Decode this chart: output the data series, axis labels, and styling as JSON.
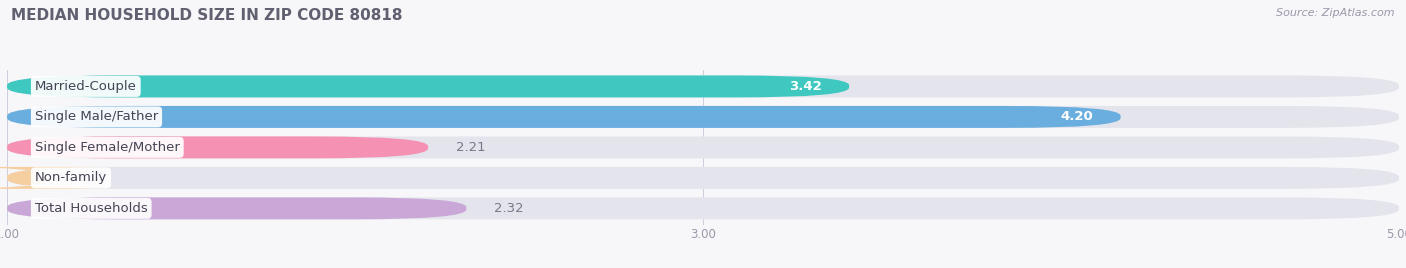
{
  "title": "MEDIAN HOUSEHOLD SIZE IN ZIP CODE 80818",
  "source": "Source: ZipAtlas.com",
  "categories": [
    "Married-Couple",
    "Single Male/Father",
    "Single Female/Mother",
    "Non-family",
    "Total Households"
  ],
  "values": [
    3.42,
    4.2,
    2.21,
    1.12,
    2.32
  ],
  "bar_colors": [
    "#3ec8c0",
    "#6aaedf",
    "#f591b2",
    "#f5cfa0",
    "#c9a8d8"
  ],
  "bar_bg_color": "#e4e4ec",
  "xlim_min": 1.0,
  "xlim_max": 5.0,
  "xticks": [
    1.0,
    3.0,
    5.0
  ],
  "xtick_labels": [
    "1.00",
    "3.00",
    "5.00"
  ],
  "bg_color": "#f7f7fa",
  "title_color": "#606070",
  "source_color": "#9999aa",
  "title_fontsize": 11,
  "bar_height": 0.72,
  "label_fontsize": 9.5,
  "cat_fontsize": 9.5
}
